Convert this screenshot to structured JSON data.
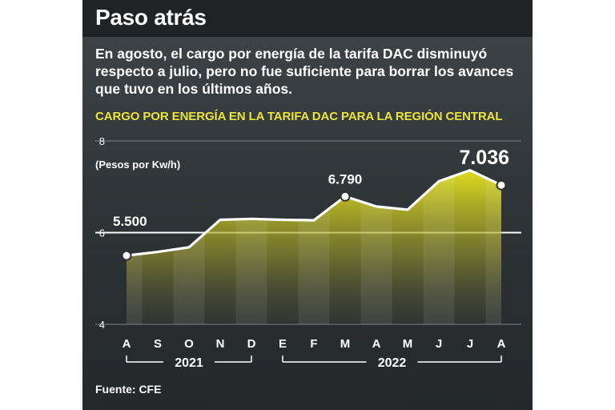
{
  "header": {
    "title": "Paso atrás"
  },
  "subtitle": "En agosto, el cargo por energía de la tarifa DAC disminuyó respecto a julio, pero no fue suficiente para borrar los avances que tuvo en los últimos años.",
  "source": "Fuente: CFE",
  "colors": {
    "accent": "#e9e53a",
    "background": "#2c3134",
    "header": "#1f2326",
    "line": "#ffffff"
  },
  "chart_data": {
    "type": "area",
    "title": "CARGO POR ENERGÍA EN LA TARIFA DAC PARA LA REGIÓN CENTRAL",
    "ylabel": "(Pesos por Kw/h)",
    "xlabel": "",
    "ylim": [
      4,
      8
    ],
    "yticks": [
      "4",
      "6",
      "8"
    ],
    "categories": [
      "A",
      "S",
      "O",
      "N",
      "D",
      "E",
      "F",
      "M",
      "A",
      "M",
      "J",
      "J",
      "A"
    ],
    "year_groups": [
      {
        "label": "2021",
        "from": 0,
        "to": 4
      },
      {
        "label": "2022",
        "from": 5,
        "to": 12
      }
    ],
    "values": [
      5.5,
      5.58,
      5.68,
      6.28,
      6.3,
      6.28,
      6.27,
      6.79,
      6.57,
      6.5,
      7.12,
      7.36,
      7.036
    ],
    "value_labels": [
      {
        "index": 0,
        "text": "5.500"
      },
      {
        "index": 7,
        "text": "6.790"
      },
      {
        "index": 12,
        "text": "7.036"
      }
    ],
    "highlight_gridline": 6,
    "grid": true
  }
}
